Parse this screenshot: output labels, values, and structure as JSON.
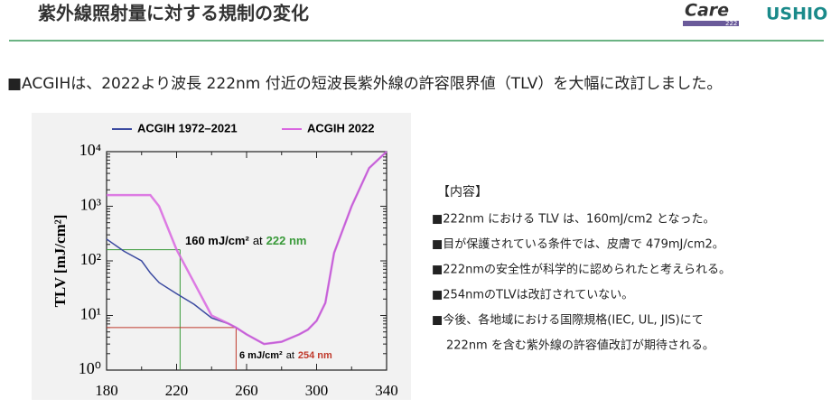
{
  "header": {
    "title": "紫外線照射量に対する規制の変化",
    "logo_care": "Care",
    "logo_222": "222",
    "logo_ushio": "USHIO"
  },
  "intro": "■ACGIHは、2022より波長 222nm 付近の短波長紫外線の許容限界値（TLV）を大幅に改訂しました。",
  "chart_data": {
    "type": "line",
    "ylabel": "TLV [mJ/cm²]",
    "log_y": true,
    "x": [
      180,
      190,
      200,
      205,
      210,
      220,
      230,
      240,
      250,
      254,
      260,
      270,
      280,
      290,
      295,
      300,
      305,
      310,
      320,
      330,
      340
    ],
    "series": [
      {
        "name": "ACGIH 1972–2021",
        "color": "#3b4aa0",
        "values": [
          250,
          150,
          100,
          60,
          40,
          25,
          16,
          9,
          7,
          6,
          4.5,
          3,
          3.3,
          4.5,
          5.5,
          8,
          17,
          140,
          1000,
          5000,
          10000
        ]
      },
      {
        "name": "ACGIH 2022",
        "color": "#d966e0",
        "values": [
          1600,
          1600,
          1600,
          1600,
          1000,
          160,
          40,
          10,
          7,
          6,
          4.5,
          3,
          3.3,
          4.5,
          5.5,
          8,
          17,
          140,
          1000,
          5000,
          10000
        ]
      }
    ],
    "xlim": [
      180,
      340
    ],
    "xticks": [
      180,
      220,
      260,
      300,
      340
    ],
    "ylim": [
      1,
      10000
    ],
    "yticks": [
      {
        "value": 1,
        "label": "10⁰"
      },
      {
        "value": 10,
        "label": "10¹"
      },
      {
        "value": 100,
        "label": "10²"
      },
      {
        "value": 1000,
        "label": "10³"
      },
      {
        "value": 10000,
        "label": "10⁴"
      }
    ],
    "annotations": [
      {
        "label": "160 mJ/cm²",
        "joiner": "at",
        "highlight": "222 nm",
        "x": 222,
        "y": 160,
        "color": "#3a9a3a"
      },
      {
        "label": "6 mJ/cm²",
        "joiner": "at",
        "highlight": "254 nm",
        "x": 254,
        "y": 6,
        "color": "#c0392b"
      }
    ]
  },
  "content": {
    "heading": "【内容】",
    "items": [
      "■222nm における TLV は、160mJ/cm2 となった。",
      "■目が保護されている条件では、皮膚で 479mJ/cm2。",
      "■222nmの安全性が科学的に認められたと考えられる。",
      "■254nmのTLVは改訂されていない。",
      "■今後、各地域における国際規格(IEC, UL, JIS)にて",
      "222nm を含む紫外線の許容値改訂が期待される。"
    ]
  }
}
